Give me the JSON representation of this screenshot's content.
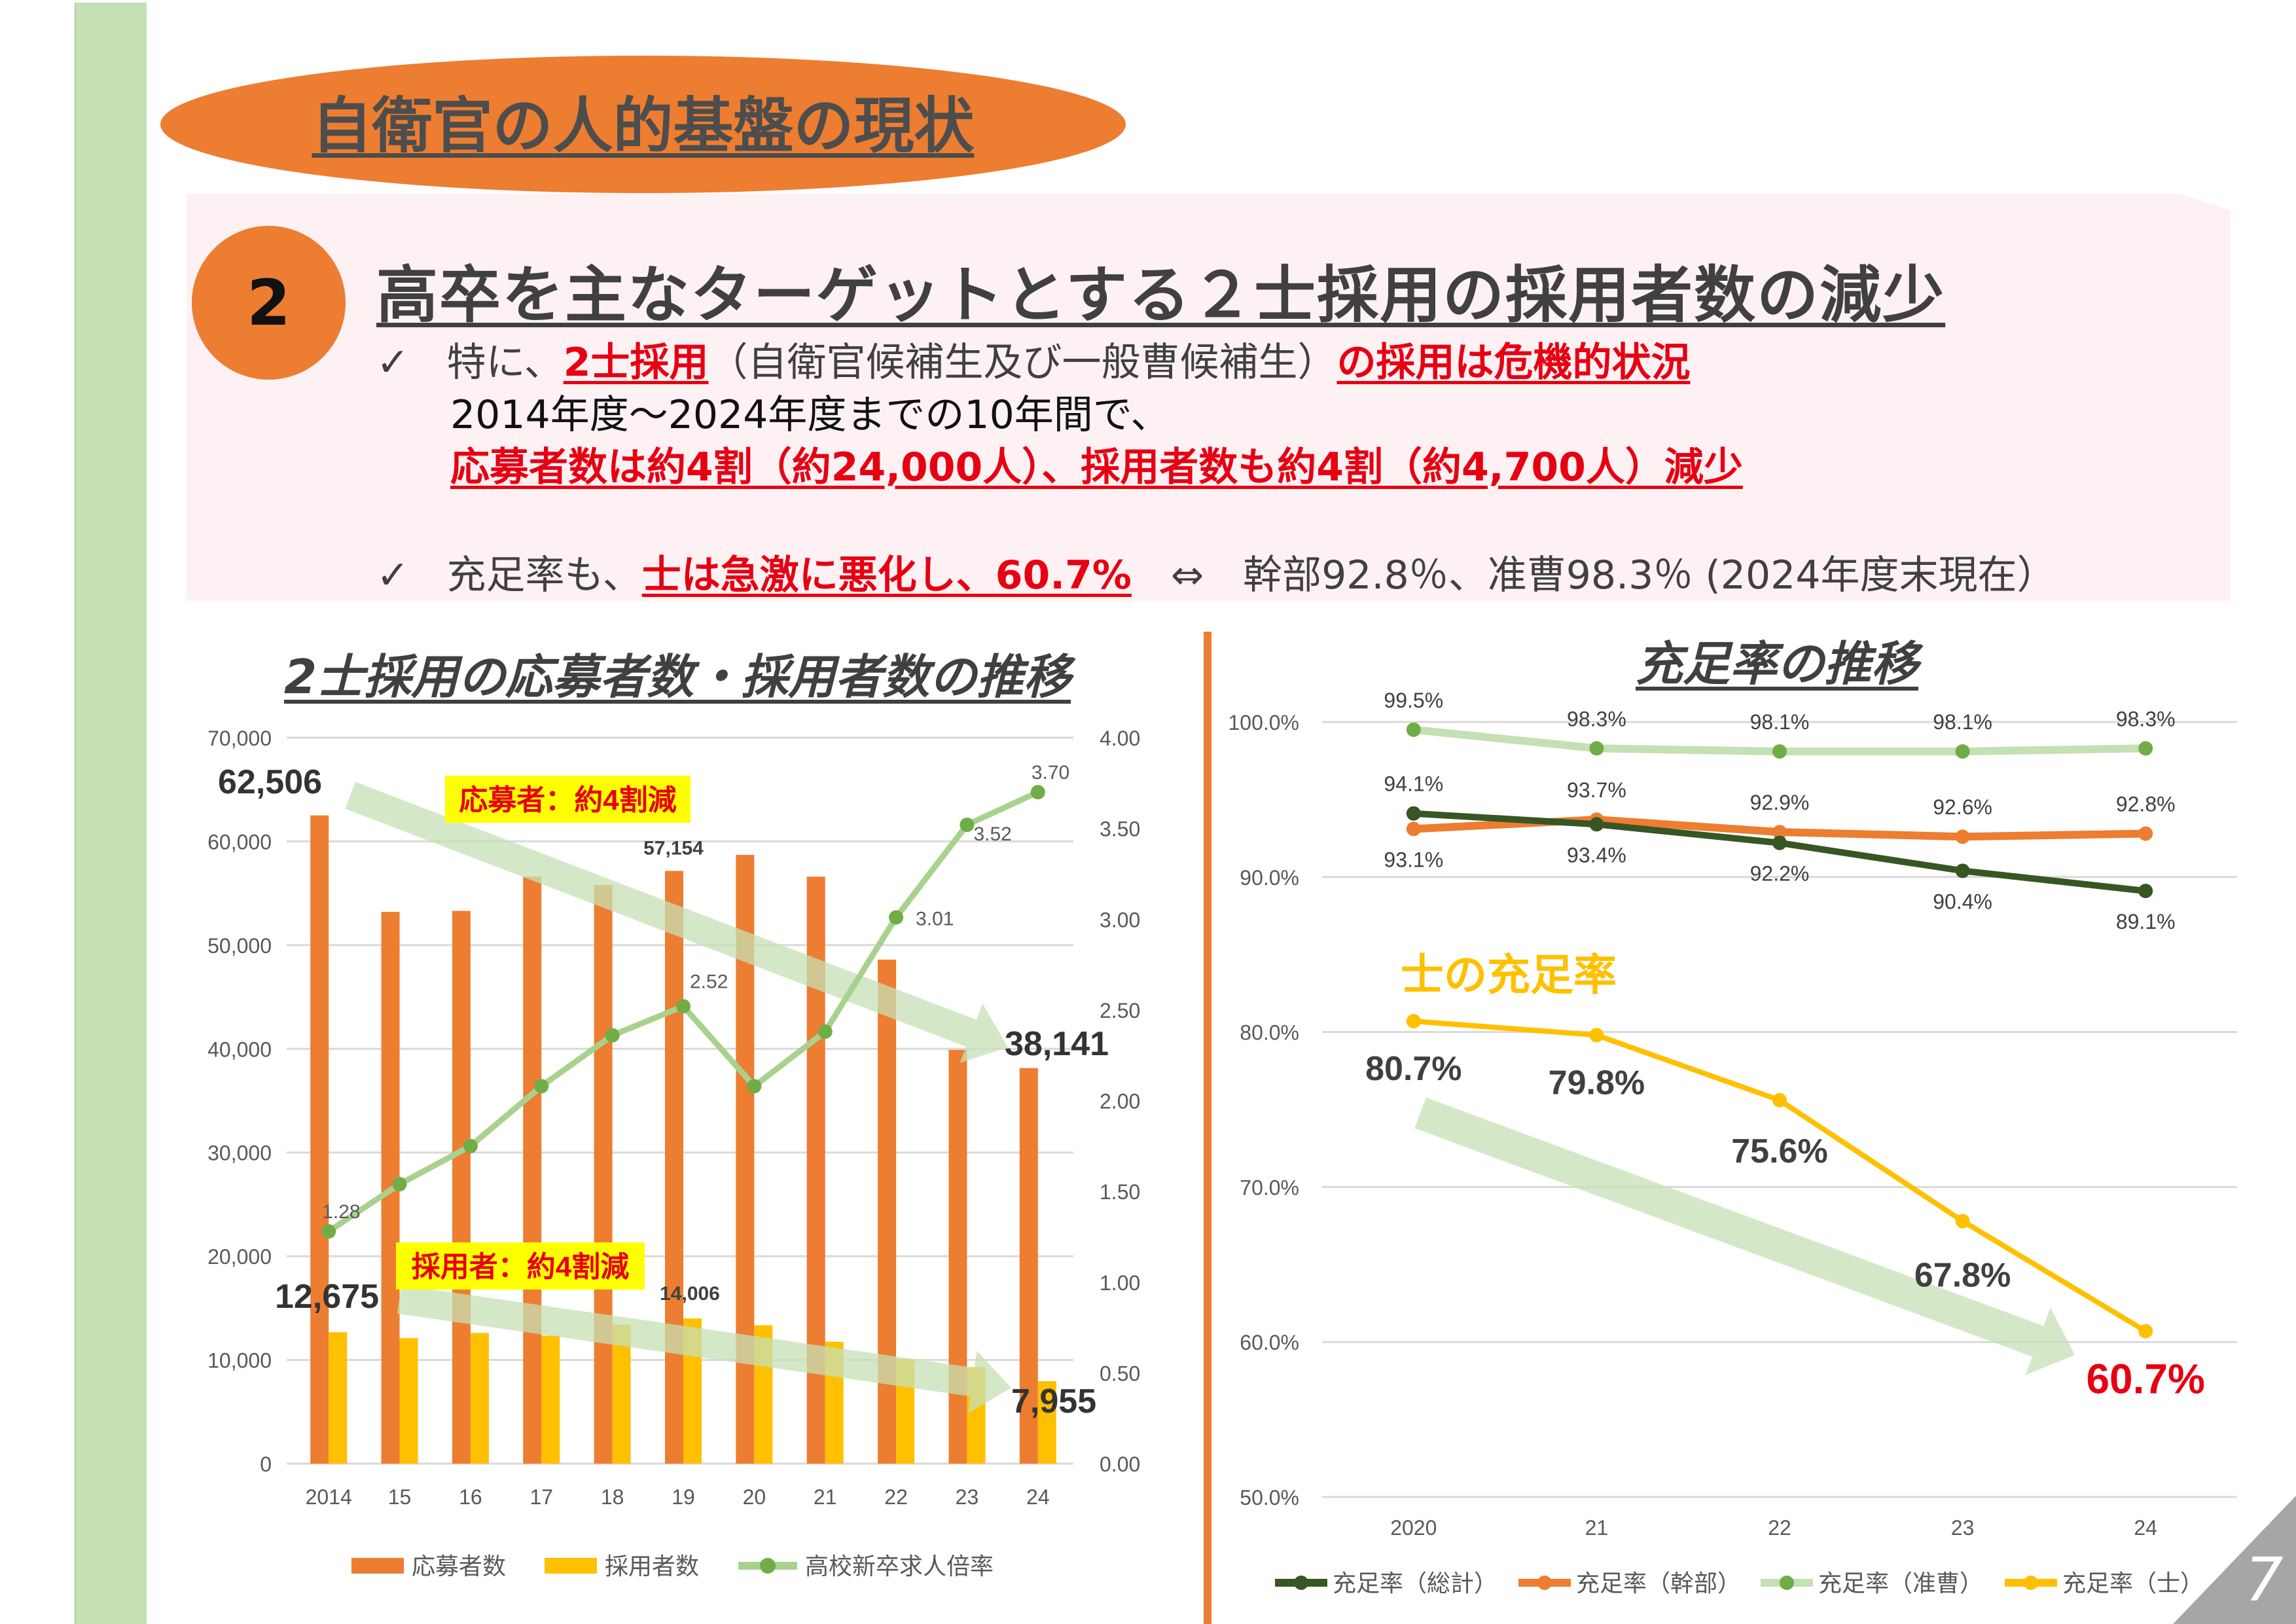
{
  "slide": {
    "title": "自衛官の人的基盤の現状",
    "page_number": "7",
    "section_number": "2",
    "headline": "高卒を主なターゲットとする２士採用の採用者数の減少",
    "bullets": [
      {
        "check": "✓",
        "parts": [
          {
            "text": "特に、",
            "style": "normal"
          },
          {
            "text": "2士採用",
            "style": "red"
          },
          {
            "text": "（自衛官候補生及び一般曹候補生）",
            "style": "normal"
          },
          {
            "text": "の採用は危機的状況",
            "style": "red"
          }
        ]
      },
      {
        "check": "",
        "parts": [
          {
            "text": "2014年度～2024年度までの10年間で、",
            "style": "black"
          }
        ]
      },
      {
        "check": "",
        "parts": [
          {
            "text": "応募者数は約4割（約24,000人）、採用者数も約4割（約4,700人）減少",
            "style": "red"
          }
        ]
      },
      {
        "check": "✓",
        "parts": [
          {
            "text": "充足率も、",
            "style": "normal"
          },
          {
            "text": "士は急激に悪化し、60.7%",
            "style": "red"
          },
          {
            "text": "　⇔　幹部92.8％、准曹98.3％ (2024年度末現在）",
            "style": "normal"
          }
        ]
      }
    ]
  },
  "colors": {
    "orange": "#ed7d31",
    "yellow": "#ffc000",
    "green_line": "#a9d18e",
    "green_marker": "#70ad47",
    "dark_green": "#375623",
    "light_green": "#c5e0b4",
    "red": "#e60012",
    "pink_bg": "#fef1f4",
    "sidebar_green": "#c5e0b4"
  },
  "chart_data": [
    {
      "type": "bar",
      "title": "2士採用の応募者数・採用者数の推移",
      "categories": [
        "2014",
        "15",
        "16",
        "17",
        "18",
        "19",
        "20",
        "21",
        "22",
        "23",
        "24"
      ],
      "series": [
        {
          "name": "応募者数",
          "axis": "left",
          "kind": "bar",
          "color": "#ed7d31",
          "values": [
            62506,
            53200,
            53300,
            56600,
            55800,
            57154,
            58700,
            56600,
            48600,
            39900,
            38141
          ]
        },
        {
          "name": "採用者数",
          "axis": "left",
          "kind": "bar",
          "color": "#ffc000",
          "values": [
            12675,
            12100,
            12600,
            12350,
            13400,
            14006,
            13350,
            11750,
            10080,
            9300,
            7955
          ]
        },
        {
          "name": "高校新卒求人倍率",
          "axis": "right",
          "kind": "line",
          "color": "#a9d18e",
          "marker_color": "#70ad47",
          "values": [
            1.28,
            1.54,
            1.75,
            2.08,
            2.36,
            2.52,
            2.08,
            2.38,
            3.01,
            3.52,
            3.7
          ]
        }
      ],
      "left_axis": {
        "ylim": [
          0,
          70000
        ],
        "ticks": [
          "0",
          "10,000",
          "20,000",
          "30,000",
          "40,000",
          "50,000",
          "60,000",
          "70,000"
        ]
      },
      "right_axis": {
        "ylim": [
          0,
          4.0
        ],
        "ticks": [
          "0.00",
          "0.50",
          "1.00",
          "1.50",
          "2.00",
          "2.50",
          "3.00",
          "3.50",
          "4.00"
        ]
      },
      "line_labels": [
        {
          "index": 0,
          "text": "1.28"
        },
        {
          "index": 5,
          "text": "2.52"
        },
        {
          "index": 8,
          "text": "3.01"
        },
        {
          "index": 9,
          "text": "3.52"
        },
        {
          "index": 10,
          "text": "3.70"
        }
      ],
      "bar_labels": [
        {
          "series": 0,
          "index": 5,
          "text": "57,154"
        },
        {
          "series": 1,
          "index": 5,
          "text": "14,006"
        }
      ],
      "highlight_labels": [
        {
          "series": 0,
          "index": 0,
          "text": "62,506"
        },
        {
          "series": 0,
          "index": 10,
          "text": "38,141"
        },
        {
          "series": 1,
          "index": 0,
          "text": "12,675"
        },
        {
          "series": 1,
          "index": 10,
          "text": "7,955"
        }
      ],
      "annotations": [
        {
          "text": "応募者：約4割減",
          "bg": "#ffff00",
          "color": "#e60012"
        },
        {
          "text": "採用者：約4割減",
          "bg": "#ffff00",
          "color": "#e60012"
        }
      ],
      "grid": true,
      "legend": "bottom"
    },
    {
      "type": "line",
      "title": "充足率の推移",
      "categories": [
        "2020",
        "21",
        "22",
        "23",
        "24"
      ],
      "series": [
        {
          "name": "充足率（総計）",
          "color": "#375623",
          "values": [
            94.1,
            93.4,
            92.2,
            90.4,
            89.1
          ],
          "label_pos": [
            "above",
            "below",
            "below",
            "below",
            "below"
          ]
        },
        {
          "name": "充足率（幹部）",
          "color": "#ed7d31",
          "values": [
            93.1,
            93.7,
            92.9,
            92.6,
            92.8
          ],
          "label_pos": [
            "below",
            "above",
            "above",
            "above",
            "above"
          ]
        },
        {
          "name": "充足率（准曹）",
          "color": "#c5e0b4",
          "marker_color": "#70ad47",
          "values": [
            99.5,
            98.3,
            98.1,
            98.1,
            98.3
          ],
          "label_pos": [
            "above",
            "above",
            "above",
            "above",
            "above"
          ]
        },
        {
          "name": "充足率（士）",
          "color": "#ffc000",
          "values": [
            80.7,
            79.8,
            75.6,
            67.8,
            60.7
          ],
          "label_pos": [
            "below",
            "below",
            "below",
            "below",
            "below"
          ],
          "big_labels": true
        }
      ],
      "labels": {
        "総計": [
          "94.1%",
          "93.4%",
          "92.2%",
          "90.4%",
          "89.1%"
        ],
        "幹部": [
          "93.1%",
          "93.7%",
          "92.9%",
          "92.6%",
          "92.8%"
        ],
        "准曹": [
          "99.5%",
          "98.3%",
          "98.1%",
          "98.1%",
          "98.3%"
        ],
        "士": [
          "80.7%",
          "79.8%",
          "75.6%",
          "67.8%",
          "60.7%"
        ]
      },
      "ylim": [
        50,
        100
      ],
      "yticks": [
        "50.0%",
        "60.0%",
        "70.0%",
        "80.0%",
        "90.0%",
        "100.0%"
      ],
      "annotation": {
        "text": "士の充足率",
        "color": "#ffc000"
      },
      "grid": true,
      "legend": "bottom"
    }
  ]
}
